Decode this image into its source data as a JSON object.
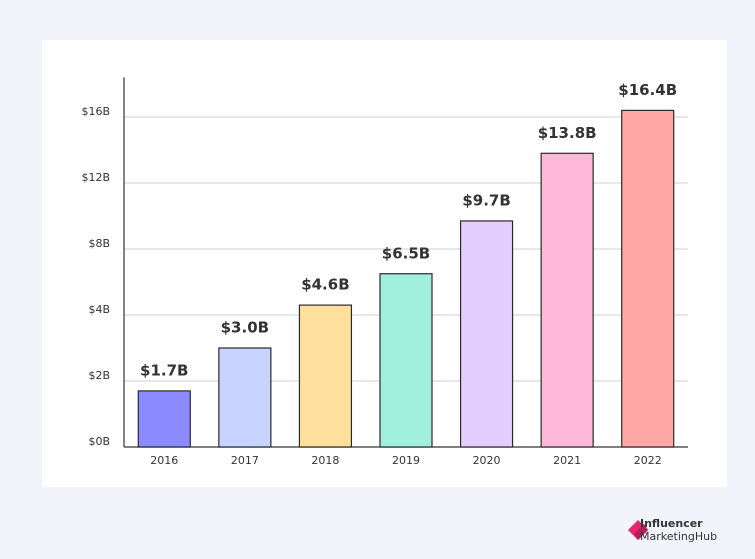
{
  "chart_data": {
    "type": "bar",
    "categories": [
      "2016",
      "2017",
      "2018",
      "2019",
      "2020",
      "2021",
      "2022"
    ],
    "values": [
      1.7,
      3.0,
      4.6,
      6.5,
      9.7,
      13.8,
      16.4
    ],
    "value_labels": [
      "$1.7B",
      "$3.0B",
      "$4.6B",
      "$6.5B",
      "$9.7B",
      "$13.8B",
      "$16.4B"
    ],
    "colors": [
      "#8b8bff",
      "#c9d3ff",
      "#ffdf9c",
      "#a0f0dd",
      "#e4cdff",
      "#ffb8da",
      "#ffa6a6"
    ],
    "ylim": [
      0,
      18.4
    ],
    "yticks": [
      {
        "value": 0,
        "label": "$0B"
      },
      {
        "value": 2,
        "label": "$2B"
      },
      {
        "value": 4,
        "label": "$4B"
      },
      {
        "value": 8,
        "label": "$8B"
      },
      {
        "value": 12,
        "label": "$12B"
      },
      {
        "value": 16,
        "label": "$16B"
      }
    ],
    "grid": true
  },
  "logo": {
    "line1": "Influencer",
    "line2": "MarketingHub"
  }
}
